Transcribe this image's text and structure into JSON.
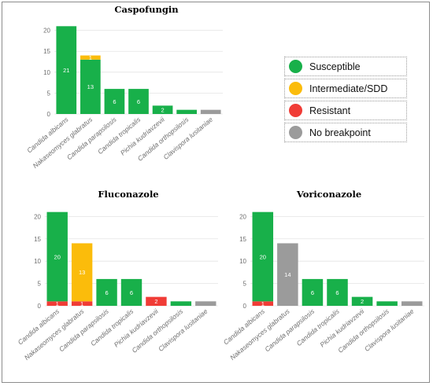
{
  "legend": [
    {
      "label": "Susceptible",
      "color": "#18b04a",
      "key": "S"
    },
    {
      "label": "Intermediate/SDD",
      "color": "#fbbc0b",
      "key": "I"
    },
    {
      "label": "Resistant",
      "color": "#f03c36",
      "key": "R"
    },
    {
      "label": "No breakpoint",
      "color": "#9b9b9b",
      "key": "N"
    }
  ],
  "chart_data": [
    {
      "type": "bar",
      "stacked": true,
      "title": "Caspofungin",
      "categories": [
        "Candida albicans",
        "Nakaseomyces glabratus",
        "Candida parapsilosis",
        "Candida tropicalis",
        "Pichia kudriavzevii",
        "Candida orthopsilosis",
        "Clavispora lusitaniae"
      ],
      "series": [
        {
          "key": "S",
          "values": [
            21,
            13,
            6,
            6,
            2,
            1,
            0
          ]
        },
        {
          "key": "I",
          "values": [
            0,
            1,
            0,
            0,
            0,
            0,
            0
          ]
        },
        {
          "key": "R",
          "values": [
            0,
            0,
            0,
            0,
            0,
            0,
            0
          ]
        },
        {
          "key": "N",
          "values": [
            0,
            0,
            0,
            0,
            0,
            0,
            1
          ]
        }
      ],
      "data_labels": [
        {
          "cat": 0,
          "key": "S",
          "text": "21"
        },
        {
          "cat": 1,
          "key": "S",
          "text": "13"
        },
        {
          "cat": 1,
          "key": "I",
          "text": "1"
        },
        {
          "cat": 2,
          "key": "S",
          "text": "6"
        },
        {
          "cat": 3,
          "key": "S",
          "text": "6"
        },
        {
          "cat": 4,
          "key": "S",
          "text": "2"
        }
      ],
      "yticks": [
        0,
        5,
        10,
        15,
        20
      ],
      "ylim": [
        0,
        22
      ],
      "grid": true
    },
    {
      "type": "bar",
      "stacked": true,
      "title": "Fluconazole",
      "categories": [
        "Candida albicans",
        "Nakaseomyces glabratus",
        "Candida parapsilosis",
        "Candida tropicalis",
        "Pichia kudriavzevii",
        "Candida orthopsilosis",
        "Clavispora lusitaniae"
      ],
      "series": [
        {
          "key": "R",
          "values": [
            1,
            1,
            0,
            0,
            2,
            0,
            0
          ]
        },
        {
          "key": "I",
          "values": [
            0,
            13,
            0,
            0,
            0,
            0,
            0
          ]
        },
        {
          "key": "S",
          "values": [
            20,
            0,
            6,
            6,
            0,
            1,
            0
          ]
        },
        {
          "key": "N",
          "values": [
            0,
            0,
            0,
            0,
            0,
            0,
            1
          ]
        }
      ],
      "data_labels": [
        {
          "cat": 0,
          "key": "S",
          "text": "20"
        },
        {
          "cat": 0,
          "key": "R",
          "text": "1"
        },
        {
          "cat": 1,
          "key": "I",
          "text": "13"
        },
        {
          "cat": 1,
          "key": "R",
          "text": "1"
        },
        {
          "cat": 2,
          "key": "S",
          "text": "6"
        },
        {
          "cat": 3,
          "key": "S",
          "text": "6"
        },
        {
          "cat": 4,
          "key": "R",
          "text": "2"
        }
      ],
      "yticks": [
        0,
        5,
        10,
        15,
        20
      ],
      "ylim": [
        0,
        22
      ],
      "grid": true
    },
    {
      "type": "bar",
      "stacked": true,
      "title": "Voriconazole",
      "categories": [
        "Candida albicans",
        "Nakaseomyces glabratus",
        "Candida parapsilosis",
        "Candida tropicalis",
        "Pichia kudriavzevii",
        "Candida orthopsilosis",
        "Clavispora lusitaniae"
      ],
      "series": [
        {
          "key": "R",
          "values": [
            1,
            0,
            0,
            0,
            0,
            0,
            0
          ]
        },
        {
          "key": "S",
          "values": [
            20,
            0,
            6,
            6,
            2,
            1,
            0
          ]
        },
        {
          "key": "N",
          "values": [
            0,
            14,
            0,
            0,
            0,
            0,
            1
          ]
        }
      ],
      "data_labels": [
        {
          "cat": 0,
          "key": "S",
          "text": "20"
        },
        {
          "cat": 0,
          "key": "R",
          "text": "1"
        },
        {
          "cat": 1,
          "key": "N",
          "text": "14"
        },
        {
          "cat": 2,
          "key": "S",
          "text": "6"
        },
        {
          "cat": 3,
          "key": "S",
          "text": "6"
        },
        {
          "cat": 4,
          "key": "S",
          "text": "2"
        }
      ],
      "yticks": [
        0,
        5,
        10,
        15,
        20
      ],
      "ylim": [
        0,
        22
      ],
      "grid": true
    }
  ]
}
